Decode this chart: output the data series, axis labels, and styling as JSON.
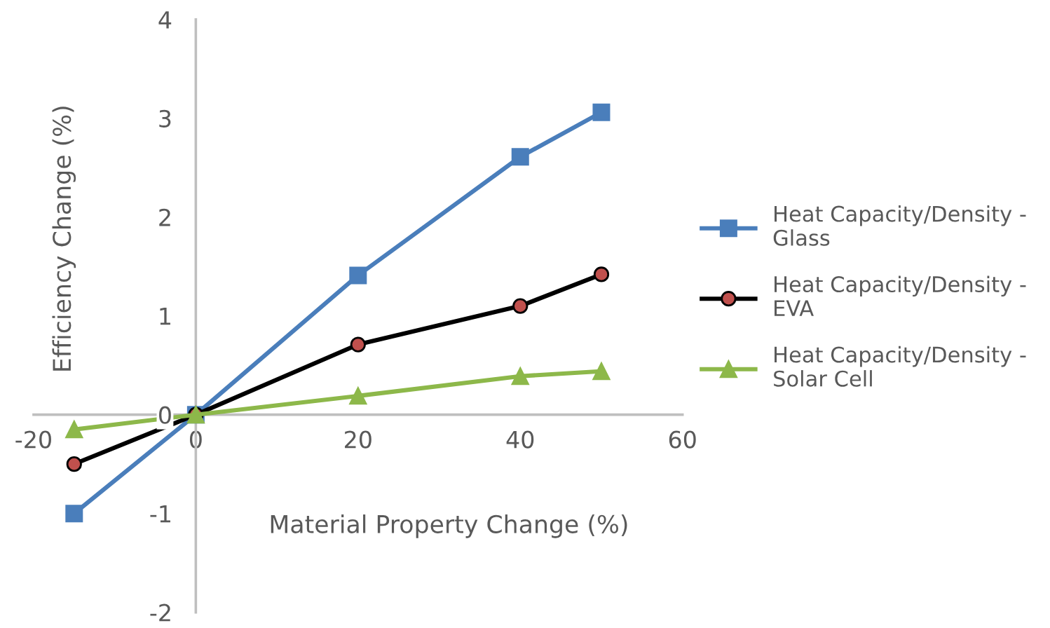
{
  "chart_data": {
    "type": "line",
    "xlabel": "Material Property Change (%)",
    "ylabel": "Efficiency Change (%)",
    "x": [
      -15,
      0,
      20,
      40,
      50
    ],
    "series": [
      {
        "name": "Heat Capacity/Density -\nGlass",
        "color": "#4a7ebb",
        "marker": "square",
        "values": [
          -1,
          0,
          1.41,
          2.61,
          3.06
        ]
      },
      {
        "name": "Heat Capacity/Density -\nEVA",
        "color": "#000000",
        "marker": "circle",
        "values": [
          -0.5,
          0,
          0.71,
          1.1,
          1.42
        ]
      },
      {
        "name": "Heat Capacity/Density -\nSolar Cell",
        "color": "#8db84a",
        "marker": "triangle",
        "values": [
          -0.15,
          0,
          0.19,
          0.39,
          0.44
        ]
      }
    ],
    "xlim": [
      -20,
      60
    ],
    "xticks": [
      -20,
      0,
      20,
      40,
      60
    ],
    "ylim": [
      -2,
      4
    ],
    "yticks": [
      -2,
      -1,
      0,
      1,
      2,
      3,
      4
    ],
    "grid": false,
    "legend": "right",
    "line_style": "solid"
  }
}
